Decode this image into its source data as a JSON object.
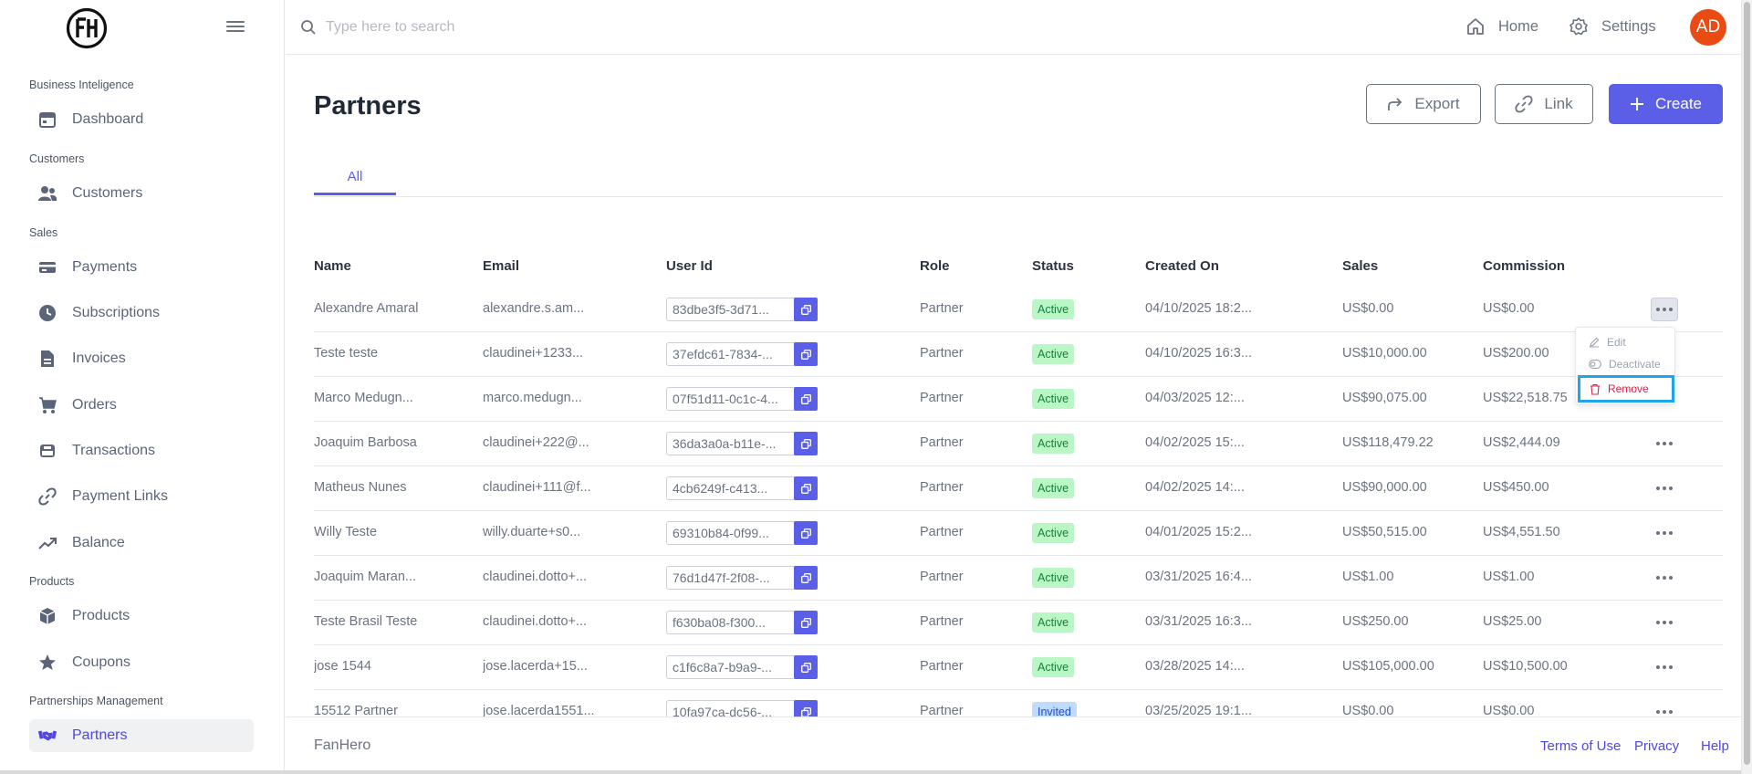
{
  "app": {
    "logo_text": "FH"
  },
  "sidebar": {
    "sections": [
      {
        "title": "Business Inteligence",
        "items": [
          {
            "label": "Dashboard",
            "icon": "calendar-icon"
          }
        ]
      },
      {
        "title": "Customers",
        "items": [
          {
            "label": "Customers",
            "icon": "users-icon"
          }
        ]
      },
      {
        "title": "Sales",
        "items": [
          {
            "label": "Payments",
            "icon": "credit-card-icon"
          },
          {
            "label": "Subscriptions",
            "icon": "clock-icon"
          },
          {
            "label": "Invoices",
            "icon": "document-icon"
          },
          {
            "label": "Orders",
            "icon": "cart-icon"
          },
          {
            "label": "Transactions",
            "icon": "bank-icon"
          },
          {
            "label": "Payment Links",
            "icon": "link-icon"
          },
          {
            "label": "Balance",
            "icon": "trending-up-icon"
          }
        ]
      },
      {
        "title": "Products",
        "items": [
          {
            "label": "Products",
            "icon": "cube-icon"
          },
          {
            "label": "Coupons",
            "icon": "star-icon"
          }
        ]
      },
      {
        "title": "Partnerships Management",
        "items": [
          {
            "label": "Partners",
            "icon": "handshake-icon",
            "active": true
          }
        ]
      }
    ]
  },
  "topbar": {
    "search_placeholder": "Type here to search",
    "home_label": "Home",
    "settings_label": "Settings",
    "avatar_initials": "AD",
    "avatar_color": "#ea4b12"
  },
  "page": {
    "title": "Partners",
    "actions": {
      "export": "Export",
      "link": "Link",
      "create": "Create"
    },
    "tabs": [
      {
        "label": "All",
        "active": true
      }
    ]
  },
  "table": {
    "columns": {
      "name": "Name",
      "email": "Email",
      "user_id": "User Id",
      "role": "Role",
      "status": "Status",
      "created_on": "Created On",
      "sales": "Sales",
      "commission": "Commission"
    },
    "rows": [
      {
        "name": "Alexandre Amaral",
        "email": "alexandre.s.am...",
        "user_id": "83dbe3f5-3d71...",
        "role": "Partner",
        "status": "Active",
        "created_on": "04/10/2025 18:2...",
        "sales": "US$0.00",
        "commission": "US$0.00"
      },
      {
        "name": "Teste teste",
        "email": "claudinei+1233...",
        "user_id": "37efdc61-7834-...",
        "role": "Partner",
        "status": "Active",
        "created_on": "04/10/2025 16:3...",
        "sales": "US$10,000.00",
        "commission": "US$200.00"
      },
      {
        "name": "Marco Medugn...",
        "email": "marco.medugn...",
        "user_id": "07f51d11-0c1c-4...",
        "role": "Partner",
        "status": "Active",
        "created_on": "04/03/2025 12:...",
        "sales": "US$90,075.00",
        "commission": "US$22,518.75"
      },
      {
        "name": "Joaquim Barbosa",
        "email": "claudinei+222@...",
        "user_id": "36da3a0a-b11e-...",
        "role": "Partner",
        "status": "Active",
        "created_on": "04/02/2025 15:...",
        "sales": "US$118,479.22",
        "commission": "US$2,444.09"
      },
      {
        "name": "Matheus Nunes",
        "email": "claudinei+111@f...",
        "user_id": "4cb6249f-c413...",
        "role": "Partner",
        "status": "Active",
        "created_on": "04/02/2025 14:...",
        "sales": "US$90,000.00",
        "commission": "US$450.00"
      },
      {
        "name": "Willy Teste",
        "email": "willy.duarte+s0...",
        "user_id": "69310b84-0f99...",
        "role": "Partner",
        "status": "Active",
        "created_on": "04/01/2025 15:2...",
        "sales": "US$50,515.00",
        "commission": "US$4,551.50"
      },
      {
        "name": "Joaquim Maran...",
        "email": "claudinei.dotto+...",
        "user_id": "76d1d47f-2f08-...",
        "role": "Partner",
        "status": "Active",
        "created_on": "03/31/2025 16:4...",
        "sales": "US$1.00",
        "commission": "US$1.00"
      },
      {
        "name": "Teste Brasil Teste",
        "email": "claudinei.dotto+...",
        "user_id": "f630ba08-f300...",
        "role": "Partner",
        "status": "Active",
        "created_on": "03/31/2025 16:3...",
        "sales": "US$250.00",
        "commission": "US$25.00"
      },
      {
        "name": "jose 1544",
        "email": "jose.lacerda+15...",
        "user_id": "c1f6c8a7-b9a9-...",
        "role": "Partner",
        "status": "Active",
        "created_on": "03/28/2025 14:...",
        "sales": "US$105,000.00",
        "commission": "US$10,500.00"
      },
      {
        "name": "15512 Partner",
        "email": "jose.lacerda1551...",
        "user_id": "10fa97ca-dc56-...",
        "role": "Partner",
        "status": "Invited",
        "created_on": "03/25/2025 19:1...",
        "sales": "US$0.00",
        "commission": "US$0.00"
      }
    ]
  },
  "row_menu": {
    "edit": "Edit",
    "deactivate": "Deactivate",
    "remove": "Remove"
  },
  "footer": {
    "brand": "FanHero",
    "terms": "Terms of Use",
    "privacy": "Privacy",
    "help": "Help"
  },
  "colors": {
    "accent": "#5b5fe8",
    "remove_outline": "#1ea5f0",
    "remove_text": "#e11d48"
  }
}
